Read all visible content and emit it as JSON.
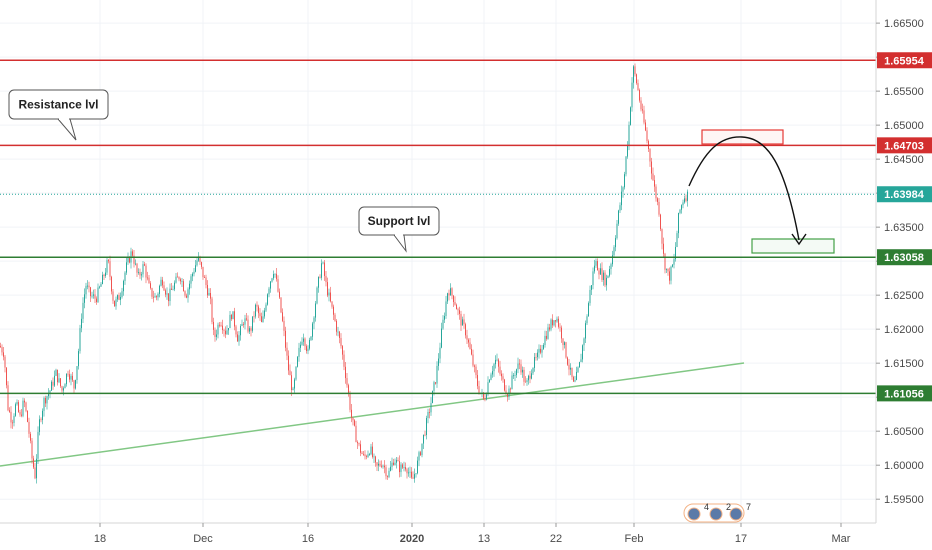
{
  "chart_data": {
    "type": "candlestick",
    "y_range": [
      1.5915,
      1.6684
    ],
    "y_ticks": [
      "1.66500",
      "1.66000",
      "1.65500",
      "1.65000",
      "1.64500",
      "1.64000",
      "1.63500",
      "1.63000",
      "1.62500",
      "1.62000",
      "1.61500",
      "1.61000",
      "1.60500",
      "1.60000",
      "1.59500"
    ],
    "x_ticks": [
      {
        "label": "18"
      },
      {
        "label": "Dec"
      },
      {
        "label": "16"
      },
      {
        "label": "2020",
        "bold": true
      },
      {
        "label": "13"
      },
      {
        "label": "22"
      },
      {
        "label": "Feb"
      },
      {
        "label": "17"
      },
      {
        "label": "Mar"
      }
    ],
    "horizontal_levels": [
      {
        "value": 1.65954,
        "label": "1.65954",
        "color": "#d32f2f",
        "style": "solid"
      },
      {
        "value": 1.64703,
        "label": "1.64703",
        "color": "#d32f2f",
        "style": "solid"
      },
      {
        "value": 1.63984,
        "label": "1.63984",
        "color": "#26a69a",
        "style": "dotted"
      },
      {
        "value": 1.63058,
        "label": "1.63058",
        "color": "#2e7d32",
        "style": "solid"
      },
      {
        "value": 1.61056,
        "label": "1.61056",
        "color": "#2e7d32",
        "style": "solid"
      }
    ],
    "annotations": [
      {
        "text": "Resistance lvl"
      },
      {
        "text": "Support lvl"
      }
    ],
    "series": [
      {
        "type": "candles",
        "path": [
          [
            0,
            1.6175
          ],
          [
            4,
            1.6165
          ],
          [
            8,
            1.6085
          ],
          [
            12,
            1.6065
          ],
          [
            16,
            1.609
          ],
          [
            20,
            1.607
          ],
          [
            24,
            1.6095
          ],
          [
            28,
            1.606
          ],
          [
            32,
            1.601
          ],
          [
            35,
            1.5985
          ],
          [
            39,
            1.606
          ],
          [
            44,
            1.6095
          ],
          [
            50,
            1.611
          ],
          [
            56,
            1.6135
          ],
          [
            62,
            1.611
          ],
          [
            68,
            1.614
          ],
          [
            74,
            1.6115
          ],
          [
            78,
            1.616
          ],
          [
            82,
            1.623
          ],
          [
            86,
            1.6265
          ],
          [
            90,
            1.625
          ],
          [
            96,
            1.6245
          ],
          [
            102,
            1.627
          ],
          [
            108,
            1.63
          ],
          [
            114,
            1.6235
          ],
          [
            120,
            1.625
          ],
          [
            126,
            1.629
          ],
          [
            132,
            1.6315
          ],
          [
            138,
            1.6275
          ],
          [
            144,
            1.6295
          ],
          [
            150,
            1.6255
          ],
          [
            156,
            1.6245
          ],
          [
            162,
            1.6275
          ],
          [
            168,
            1.6245
          ],
          [
            174,
            1.6265
          ],
          [
            180,
            1.628
          ],
          [
            186,
            1.625
          ],
          [
            192,
            1.628
          ],
          [
            198,
            1.6305
          ],
          [
            204,
            1.6275
          ],
          [
            210,
            1.6245
          ],
          [
            214,
            1.6185
          ],
          [
            220,
            1.6215
          ],
          [
            226,
            1.6195
          ],
          [
            232,
            1.6225
          ],
          [
            238,
            1.6185
          ],
          [
            244,
            1.6215
          ],
          [
            250,
            1.6195
          ],
          [
            256,
            1.6235
          ],
          [
            262,
            1.6205
          ],
          [
            268,
            1.626
          ],
          [
            274,
            1.629
          ],
          [
            278,
            1.6255
          ],
          [
            283,
            1.6205
          ],
          [
            288,
            1.6145
          ],
          [
            293,
            1.6105
          ],
          [
            298,
            1.616
          ],
          [
            303,
            1.6195
          ],
          [
            308,
            1.6165
          ],
          [
            313,
            1.6215
          ],
          [
            318,
            1.6265
          ],
          [
            322,
            1.63
          ],
          [
            326,
            1.6265
          ],
          [
            331,
            1.6235
          ],
          [
            336,
            1.6205
          ],
          [
            341,
            1.6175
          ],
          [
            346,
            1.613
          ],
          [
            352,
            1.6065
          ],
          [
            358,
            1.603
          ],
          [
            364,
            1.601
          ],
          [
            370,
            1.6025
          ],
          [
            376,
            1.5995
          ],
          [
            382,
            1.6005
          ],
          [
            388,
            1.5985
          ],
          [
            394,
            1.601
          ],
          [
            400,
            1.5995
          ],
          [
            406,
            1.6
          ],
          [
            412,
            1.5975
          ],
          [
            418,
            1.6005
          ],
          [
            424,
            1.6045
          ],
          [
            430,
            1.6085
          ],
          [
            436,
            1.613
          ],
          [
            442,
            1.62
          ],
          [
            448,
            1.626
          ],
          [
            454,
            1.6245
          ],
          [
            460,
            1.6215
          ],
          [
            466,
            1.6195
          ],
          [
            472,
            1.6155
          ],
          [
            478,
            1.6115
          ],
          [
            484,
            1.6095
          ],
          [
            490,
            1.6135
          ],
          [
            496,
            1.6155
          ],
          [
            502,
            1.6125
          ],
          [
            508,
            1.6105
          ],
          [
            514,
            1.6135
          ],
          [
            520,
            1.615
          ],
          [
            526,
            1.6115
          ],
          [
            532,
            1.6145
          ],
          [
            538,
            1.616
          ],
          [
            544,
            1.6185
          ],
          [
            550,
            1.6205
          ],
          [
            556,
            1.622
          ],
          [
            562,
            1.619
          ],
          [
            568,
            1.615
          ],
          [
            574,
            1.6115
          ],
          [
            580,
            1.615
          ],
          [
            585,
            1.62
          ],
          [
            590,
            1.6255
          ],
          [
            595,
            1.63
          ],
          [
            600,
            1.6285
          ],
          [
            606,
            1.627
          ],
          [
            612,
            1.6305
          ],
          [
            618,
            1.6365
          ],
          [
            624,
            1.642
          ],
          [
            629,
            1.65
          ],
          [
            633,
            1.6585
          ],
          [
            637,
            1.656
          ],
          [
            641,
            1.6525
          ],
          [
            645,
            1.6495
          ],
          [
            649,
            1.646
          ],
          [
            654,
            1.641
          ],
          [
            659,
            1.6375
          ],
          [
            664,
            1.63
          ],
          [
            669,
            1.6275
          ],
          [
            674,
            1.63
          ],
          [
            679,
            1.637
          ],
          [
            684,
            1.6395
          ],
          [
            688,
            1.6398
          ]
        ]
      }
    ]
  },
  "tv_badge": {
    "items": [
      "4",
      "2",
      "7"
    ]
  }
}
